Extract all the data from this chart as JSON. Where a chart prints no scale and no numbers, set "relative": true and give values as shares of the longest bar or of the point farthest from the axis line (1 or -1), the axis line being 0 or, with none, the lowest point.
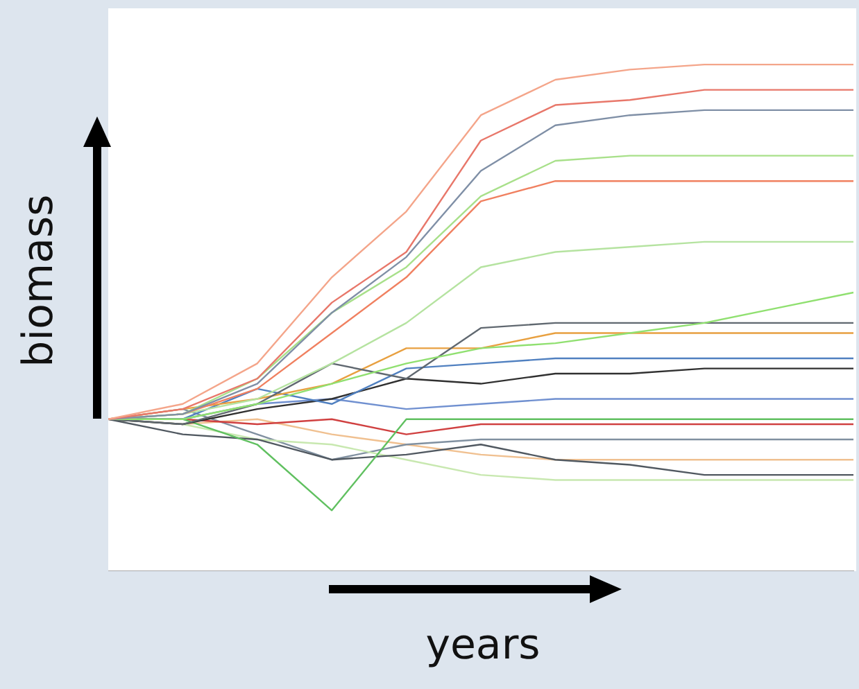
{
  "chart_data": {
    "type": "line",
    "relative": true,
    "xlabel": "years",
    "ylabel": "biomass",
    "marker": "none",
    "categories": [
      null,
      null,
      null,
      null,
      null,
      null,
      null,
      null,
      null,
      null,
      null
    ],
    "series": [
      {
        "color": "#f4a58a",
        "values": [
          0.3,
          0.33,
          0.41,
          0.58,
          0.71,
          0.9,
          0.97,
          0.99,
          1,
          1,
          1
        ]
      },
      {
        "color": "#e8776a",
        "values": [
          0.3,
          0.32,
          0.38,
          0.53,
          0.63,
          0.85,
          0.92,
          0.93,
          0.95,
          0.95,
          0.95
        ]
      },
      {
        "color": "#7f8fa6",
        "values": [
          0.3,
          0.31,
          0.37,
          0.51,
          0.62,
          0.79,
          0.88,
          0.9,
          0.91,
          0.91,
          0.91
        ]
      },
      {
        "color": "#a8e08a",
        "values": [
          0.3,
          0.31,
          0.38,
          0.51,
          0.6,
          0.74,
          0.81,
          0.82,
          0.82,
          0.82,
          0.82
        ]
      },
      {
        "color": "#f08060",
        "values": [
          0.3,
          0.31,
          0.36,
          0.47,
          0.58,
          0.73,
          0.77,
          0.77,
          0.77,
          0.77,
          0.77
        ]
      },
      {
        "color": "#b5e3a0",
        "values": [
          0.3,
          0.31,
          0.34,
          0.41,
          0.49,
          0.6,
          0.63,
          0.64,
          0.65,
          0.65,
          0.65
        ]
      },
      {
        "color": "#90e070",
        "values": [
          0.3,
          0.3,
          0.33,
          0.37,
          0.41,
          0.44,
          0.45,
          0.47,
          0.49,
          0.52,
          0.55
        ]
      },
      {
        "color": "#606870",
        "values": [
          0.3,
          0.29,
          0.33,
          0.41,
          0.38,
          0.48,
          0.49,
          0.49,
          0.49,
          0.49,
          0.49
        ]
      },
      {
        "color": "#e8a040",
        "values": [
          0.3,
          0.32,
          0.34,
          0.37,
          0.44,
          0.44,
          0.47,
          0.47,
          0.47,
          0.47,
          0.47
        ]
      },
      {
        "color": "#5080c0",
        "values": [
          0.3,
          0.3,
          0.36,
          0.33,
          0.4,
          0.41,
          0.42,
          0.42,
          0.42,
          0.42,
          0.42
        ]
      },
      {
        "color": "#303030",
        "values": [
          0.3,
          0.29,
          0.32,
          0.34,
          0.38,
          0.37,
          0.39,
          0.39,
          0.4,
          0.4,
          0.4
        ]
      },
      {
        "color": "#60c060",
        "values": [
          0.3,
          0.3,
          0.25,
          0.12,
          0.3,
          0.3,
          0.3,
          0.3,
          0.3,
          0.3,
          0.3
        ]
      },
      {
        "color": "#505860",
        "values": [
          0.3,
          0.27,
          0.26,
          0.22,
          0.23,
          0.25,
          0.22,
          0.21,
          0.19,
          0.19,
          0.19
        ]
      },
      {
        "color": "#d04040",
        "values": [
          0.3,
          0.3,
          0.29,
          0.3,
          0.27,
          0.29,
          0.29,
          0.29,
          0.29,
          0.29,
          0.29
        ]
      },
      {
        "color": "#c8e8b0",
        "values": [
          0.3,
          0.29,
          0.26,
          0.25,
          0.22,
          0.19,
          0.18,
          0.18,
          0.18,
          0.18,
          0.18
        ]
      },
      {
        "color": "#8090a0",
        "values": [
          0.3,
          0.32,
          0.27,
          0.22,
          0.25,
          0.26,
          0.26,
          0.26,
          0.26,
          0.26,
          0.26
        ]
      },
      {
        "color": "#f0c090",
        "values": [
          0.3,
          0.29,
          0.3,
          0.27,
          0.25,
          0.23,
          0.22,
          0.22,
          0.22,
          0.22,
          0.22
        ]
      },
      {
        "color": "#7090d0",
        "values": [
          0.3,
          0.3,
          0.33,
          0.34,
          0.32,
          0.33,
          0.34,
          0.34,
          0.34,
          0.34,
          0.34
        ]
      }
    ]
  }
}
